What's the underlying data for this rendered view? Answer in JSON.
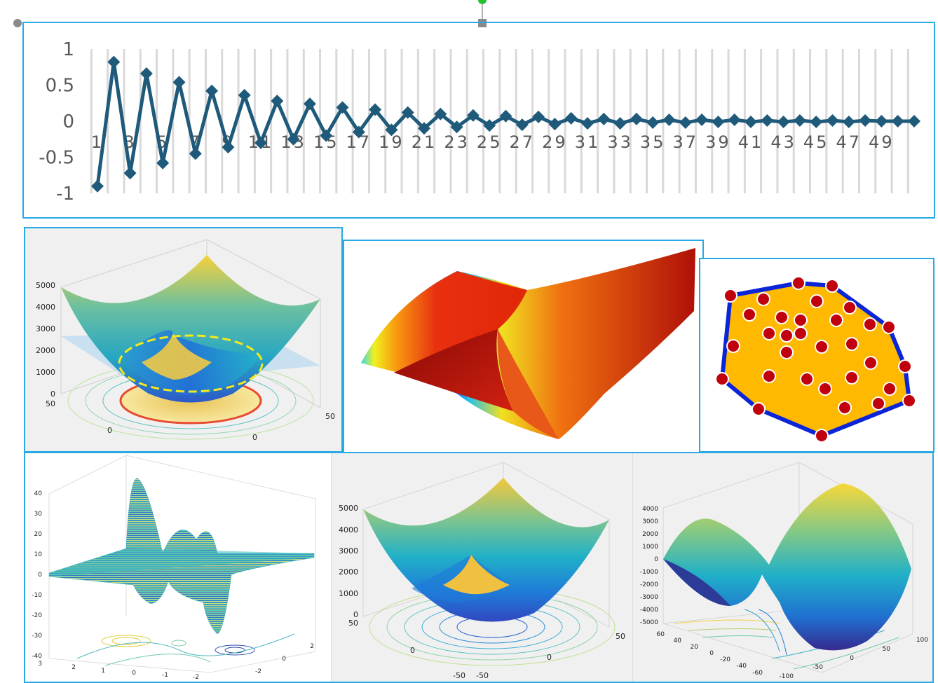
{
  "chart_data": [
    {
      "type": "line",
      "title": "",
      "xlabel": "",
      "ylabel": "",
      "ylim": [
        -1,
        1
      ],
      "y_ticks": [
        "1",
        "0.5",
        "0",
        "-0.5",
        "-1"
      ],
      "x_tick_labels": [
        "1",
        "3",
        "5",
        "7",
        "9",
        "11",
        "13",
        "15",
        "17",
        "19",
        "21",
        "23",
        "25",
        "27",
        "29",
        "31",
        "33",
        "35",
        "37",
        "39",
        "41",
        "43",
        "45",
        "47",
        "49"
      ],
      "x": [
        1,
        2,
        3,
        4,
        5,
        6,
        7,
        8,
        9,
        10,
        11,
        12,
        13,
        14,
        15,
        16,
        17,
        18,
        19,
        20,
        21,
        22,
        23,
        24,
        25,
        26,
        27,
        28,
        29,
        30,
        31,
        32,
        33,
        34,
        35,
        36,
        37,
        38,
        39,
        40,
        41,
        42,
        43,
        44,
        45,
        46,
        47,
        48,
        49,
        50,
        51
      ],
      "values": [
        -0.9,
        0.82,
        -0.72,
        0.66,
        -0.58,
        0.54,
        -0.45,
        0.42,
        -0.36,
        0.36,
        -0.3,
        0.28,
        -0.25,
        0.24,
        -0.2,
        0.19,
        -0.15,
        0.16,
        -0.12,
        0.12,
        -0.1,
        0.1,
        -0.08,
        0.08,
        -0.06,
        0.07,
        -0.05,
        0.06,
        -0.04,
        0.04,
        -0.03,
        0.03,
        -0.03,
        0.03,
        -0.02,
        0.02,
        -0.02,
        0.02,
        -0.01,
        0.02,
        -0.01,
        0.01,
        -0.01,
        0.01,
        -0.01,
        0.01,
        -0.01,
        0.01,
        0.0,
        0.0,
        0.0
      ],
      "grid": "vertical",
      "color": "#1f5a7a"
    },
    {
      "type": "surface",
      "z_ticks": [
        "5000",
        "4000",
        "3000",
        "2000",
        "1000",
        "0"
      ],
      "y_ticks": [
        "50",
        "0"
      ],
      "x_ticks": [
        "50",
        "0"
      ]
    },
    {
      "type": "surface",
      "colormap": "jet"
    },
    {
      "type": "scatter",
      "points": [
        [
          1040,
          420
        ],
        [
          1087,
          425
        ],
        [
          1137,
          402
        ],
        [
          1185,
          406
        ],
        [
          1163,
          428
        ],
        [
          1210,
          437
        ],
        [
          1067,
          447
        ],
        [
          1113,
          451
        ],
        [
          1140,
          455
        ],
        [
          1191,
          455
        ],
        [
          1239,
          461
        ],
        [
          1266,
          465
        ],
        [
          1095,
          474
        ],
        [
          1120,
          477
        ],
        [
          1140,
          474
        ],
        [
          1044,
          492
        ],
        [
          1213,
          489
        ],
        [
          1170,
          493
        ],
        [
          1120,
          501
        ],
        [
          1240,
          516
        ],
        [
          1289,
          521
        ],
        [
          1028,
          539
        ],
        [
          1095,
          535
        ],
        [
          1149,
          539
        ],
        [
          1213,
          537
        ],
        [
          1175,
          553
        ],
        [
          1267,
          553
        ],
        [
          1295,
          570
        ],
        [
          1251,
          574
        ],
        [
          1203,
          580
        ],
        [
          1080,
          582
        ],
        [
          1170,
          620
        ]
      ],
      "hull_color": "#0a25d8",
      "fill_color": "#ffb900",
      "point_color": "#c0000c"
    },
    {
      "type": "surface",
      "style": "mesh",
      "z_ticks": [
        "40",
        "30",
        "20",
        "10",
        "0",
        "-10",
        "-20",
        "-30",
        "-40"
      ],
      "x_ticks": [
        "3",
        "2",
        "1",
        "0",
        "-1",
        "-2"
      ],
      "y_ticks": [
        "2",
        "0",
        "-2"
      ]
    },
    {
      "type": "surface",
      "z_ticks": [
        "5000",
        "4000",
        "3000",
        "2000",
        "1000",
        "0"
      ],
      "y_ticks": [
        "50",
        "0",
        "-50"
      ],
      "x_ticks": [
        "50",
        "0",
        "-50"
      ]
    },
    {
      "type": "surface",
      "z_ticks": [
        "4000",
        "3000",
        "2000",
        "1000",
        "0",
        "-1000",
        "-2000",
        "-3000",
        "-4000",
        "-5000"
      ],
      "y_ticks": [
        "60",
        "40",
        "20",
        "0",
        "-20",
        "-40",
        "-60"
      ],
      "x_ticks": [
        "100",
        "50",
        "0",
        "-50",
        "-100"
      ]
    }
  ],
  "colors": {
    "frame_border": "#29a9e6",
    "panel_bg": "#f0f0f0",
    "handle_green": "#22c32a",
    "handle_gray": "#888888"
  }
}
